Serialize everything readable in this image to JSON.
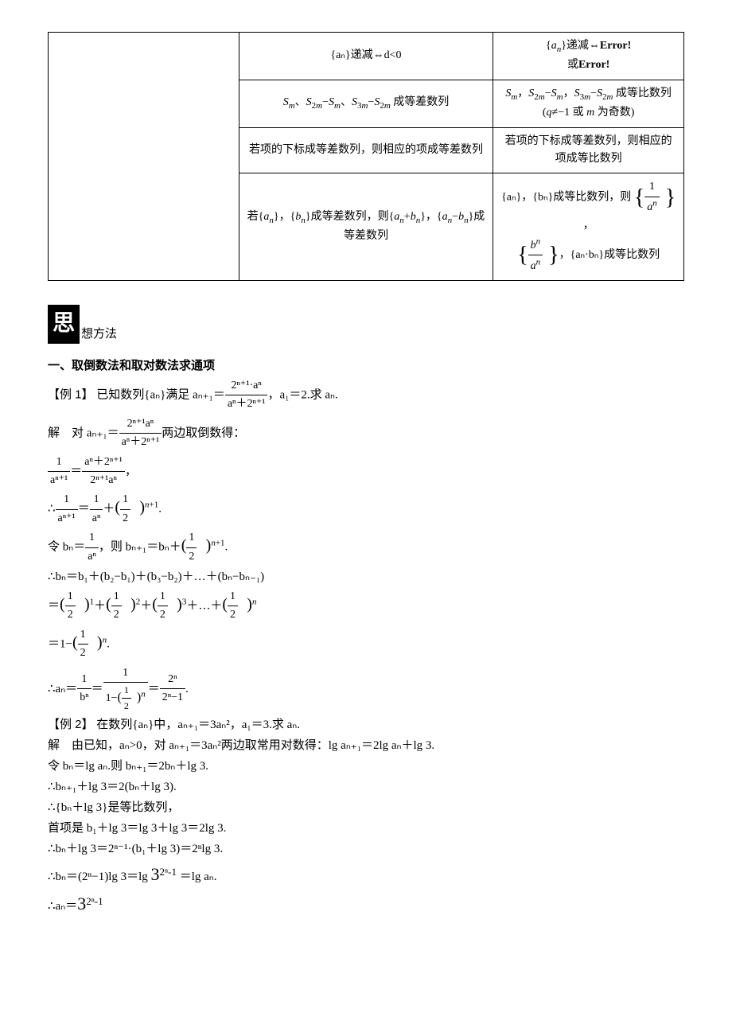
{
  "table": {
    "rows": [
      {
        "left": "",
        "mid": "{aₙ}递减⇔d<0",
        "right": "{aₙ}递减⇔Error!\n或Error!"
      },
      {
        "left": "",
        "mid": "Sₘ、S₂ₘ−Sₘ、S₃ₘ−S₂ₘ成等差数列",
        "right": "Sₘ，S₂ₘ−Sₘ，S₃ₘ−S₂ₘ 成等比数列 (q≠−1 或 m 为奇数)"
      },
      {
        "left": "",
        "mid": "若项的下标成等差数列，则相应的项成等差数列",
        "right": "若项的下标成等差数列，则相应的项成等比数列"
      },
      {
        "left": "",
        "mid": "若{aₙ}，{bₙ}成等差数列，则{aₙ+bₙ}，{aₙ−bₙ}成等差数列",
        "right_prefix": "{aₙ}，{bₙ}成等比数列，则",
        "right_mid": "，",
        "right_suffix": "，{aₙ·bₙ}成等比数列"
      }
    ]
  },
  "section": {
    "icon": "思",
    "title": "想方法"
  },
  "heading1": "一、取倒数法和取对数法求通项",
  "ex1": {
    "label": "【例 1】",
    "stem_prefix": "已知数列{aₙ}满足 aₙ₊₁＝",
    "stem_suffix": "，a₁＝2.求 aₙ.",
    "sol_label": "解",
    "line1_prefix": "对 aₙ₊₁＝",
    "line1_suffix": "两边取倒数得：",
    "line4_prefix": "令 bₙ＝",
    "line4_mid": "，则 bₙ₊₁＝bₙ＋",
    "line5": "∴bₙ＝b₁＋(b₂−b₁)＋(b₃−b₂)＋…＋(bₙ−bₙ₋₁)",
    "line8_prefix": "∴aₙ＝",
    "line8_eq": "＝",
    "line8_eq2": "＝",
    "frac_a": {
      "num": "2ⁿ⁺¹·aⁿ",
      "den": "aⁿ＋2ⁿ⁺¹"
    },
    "frac_b": {
      "num": "2ⁿ⁺¹aⁿ",
      "den": "aⁿ＋2ⁿ⁺¹"
    },
    "frac_c": {
      "num": "1",
      "den": "aⁿ⁺¹"
    },
    "frac_d": {
      "num": "aⁿ＋2ⁿ⁺¹",
      "den": "2ⁿ⁺¹aⁿ"
    },
    "frac_e": {
      "num": "1",
      "den": "aⁿ⁺¹"
    },
    "frac_f": {
      "num": "1",
      "den": "aⁿ"
    },
    "frac_half": {
      "num": "1",
      "den": "2"
    },
    "frac_g": {
      "num": "1",
      "den": "aⁿ"
    },
    "frac_h": {
      "num": "1",
      "den": "bⁿ"
    },
    "frac_j": {
      "num": "2ⁿ",
      "den": "2ⁿ−1"
    }
  },
  "ex2": {
    "label": "【例 2】",
    "stem": "在数列{aₙ}中，aₙ₊₁＝3aₙ²，a₁＝3.求 aₙ.",
    "line1": "解　由已知，aₙ>0，对 aₙ₊₁＝3aₙ²两边取常用对数得：lg aₙ₊₁＝2lg aₙ＋lg 3.",
    "line2": "令 bₙ＝lg aₙ.则 bₙ₊₁＝2bₙ＋lg 3.",
    "line3": "∴bₙ₊₁＋lg 3＝2(bₙ＋lg 3).",
    "line4": "∴{bₙ＋lg 3}是等比数列，",
    "line5": "首项是 b₁＋lg 3＝lg 3＋lg 3＝2lg 3.",
    "line6": "∴bₙ＋lg 3＝2ⁿ⁻¹·(b₁＋lg 3)＝2ⁿlg 3.",
    "line7_prefix": "∴bₙ＝(2ⁿ−1)lg 3＝lg ",
    "line7_mid": "3",
    "line7_exp": "2ⁿ-1",
    "line7_suffix": "＝lg aₙ.",
    "line8_prefix": "∴aₙ＝",
    "line8_mid": "3",
    "line8_exp": "2ⁿ-1"
  }
}
